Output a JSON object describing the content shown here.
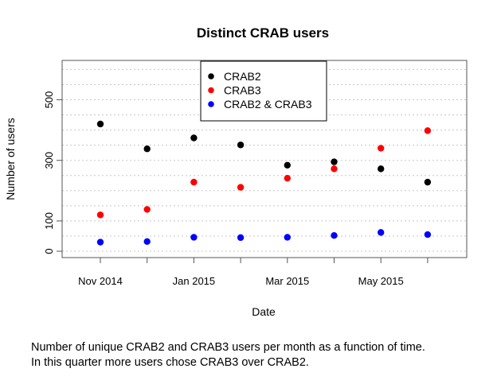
{
  "chart_data": {
    "type": "scatter",
    "title": "Distinct CRAB users",
    "xlabel": "Date",
    "ylabel": "Number of users",
    "x": [
      "2014-11",
      "2014-12",
      "2015-01",
      "2015-02",
      "2015-03",
      "2015-04",
      "2015-05",
      "2015-06"
    ],
    "x_tick_labels": [
      "Nov 2014",
      "Jan 2015",
      "Mar 2015",
      "May 2015"
    ],
    "y_ticks": [
      0,
      100,
      300,
      500
    ],
    "ylim": [
      0,
      600
    ],
    "grid": "horizontal dotted",
    "legend_position": "top-center",
    "series": [
      {
        "name": "CRAB2",
        "color": "#000000",
        "values": [
          420,
          338,
          374,
          351,
          284,
          295,
          272,
          228
        ]
      },
      {
        "name": "CRAB3",
        "color": "#ff0000",
        "values": [
          120,
          138,
          228,
          211,
          241,
          272,
          340,
          398
        ]
      },
      {
        "name": "CRAB2 & CRAB3",
        "color": "#0000ff",
        "values": [
          30,
          32,
          46,
          45,
          46,
          52,
          62,
          55
        ]
      }
    ]
  },
  "caption": {
    "line1": "Number of unique CRAB2 and CRAB3 users per month as a function of time.",
    "line2": "In this quarter more users chose CRAB3 over CRAB2."
  }
}
